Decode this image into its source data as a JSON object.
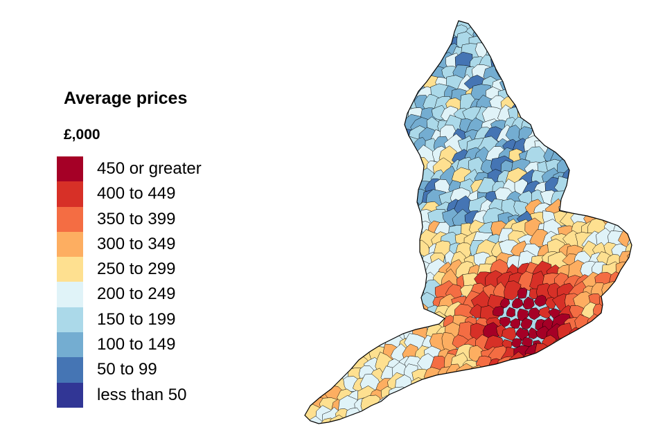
{
  "legend": {
    "title": "Average prices",
    "unit": "£,000",
    "items": [
      {
        "label": "450 or greater",
        "color": "#a50026"
      },
      {
        "label": "400 to 449",
        "color": "#d73027"
      },
      {
        "label": "350 to 399",
        "color": "#f46d43"
      },
      {
        "label": "300 to 349",
        "color": "#fdae61"
      },
      {
        "label": "250 to 299",
        "color": "#fee090"
      },
      {
        "label": "200 to 249",
        "color": "#e0f3f8"
      },
      {
        "label": "150 to 199",
        "color": "#abd9e9"
      },
      {
        "label": "100 to 149",
        "color": "#74add1"
      },
      {
        "label": "50 to 99",
        "color": "#4575b4"
      },
      {
        "label": "less than 50",
        "color": "#313695"
      }
    ]
  },
  "map": {
    "region": "England",
    "boundary_color": "#000000"
  }
}
